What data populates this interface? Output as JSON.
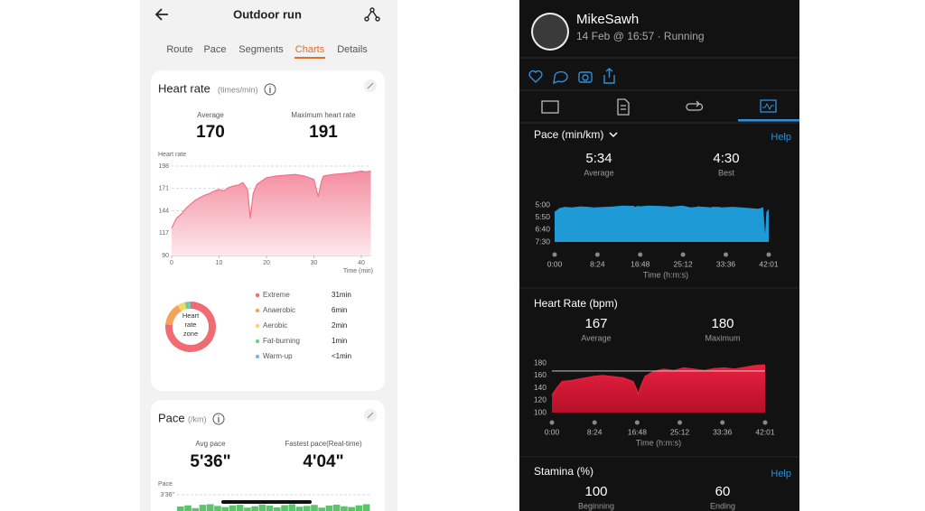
{
  "left_screen": {
    "header": {
      "title": "Outdoor run"
    },
    "tabs": [
      "Route",
      "Pace",
      "Segments",
      "Charts",
      "Details"
    ],
    "active_tab": 3,
    "heart_rate_card": {
      "title": "Heart rate",
      "unit": "(times/min)",
      "stats": [
        {
          "label": "Average",
          "value": 170
        },
        {
          "label": "Maximum heart rate",
          "value": 191
        }
      ],
      "chart_data": {
        "type": "area",
        "y_label": "Heart rate",
        "x_label": "Time (min)",
        "x": [
          0,
          1,
          2,
          3,
          4,
          5,
          6,
          7,
          8,
          9,
          10,
          11,
          12,
          13,
          14,
          15,
          16,
          16.6,
          17.2,
          18,
          19,
          20,
          22,
          24,
          26,
          28,
          30,
          30.9,
          31.6,
          32,
          34,
          36,
          38,
          40,
          41,
          42
        ],
        "values": [
          123,
          135,
          140,
          147,
          152,
          157,
          160,
          163,
          165,
          168,
          170,
          168,
          172,
          174,
          175,
          178,
          170,
          135,
          165,
          176,
          180,
          184,
          186,
          187,
          188,
          186,
          182,
          161,
          180,
          186,
          188,
          189,
          190,
          192,
          191,
          192
        ],
        "color": "#f0738a",
        "xlim": [
          0,
          42
        ],
        "ylim": [
          90,
          198
        ],
        "xticks": [
          0,
          10,
          20,
          30,
          40
        ],
        "yticks": [
          90,
          117,
          144,
          171,
          198
        ],
        "grid": true
      },
      "zones": {
        "type": "donut",
        "center_label": "Heart rate zone",
        "categories": [
          "Extreme",
          "Anaerobic",
          "Aerobic",
          "Fat-burning",
          "Warm-up"
        ],
        "values": [
          31,
          6,
          2,
          1,
          0.5
        ],
        "value_labels": [
          "31min",
          "6min",
          "2min",
          "1min",
          "<1min"
        ],
        "colors": [
          "#f06b72",
          "#f5a25d",
          "#f7d56a",
          "#6fcf8f",
          "#7ab8e8"
        ]
      }
    },
    "pace_card": {
      "title": "Pace",
      "unit": "(/km)",
      "stats": [
        {
          "label": "Avg pace",
          "value": "5'36\""
        },
        {
          "label": "Fastest pace(Real-time)",
          "value": "4'04\""
        }
      ],
      "chart_data": {
        "type": "bar",
        "y_label": "Pace",
        "values": [
          320,
          310,
          335,
          305,
          300,
          315,
          325,
          310,
          305,
          330,
          318,
          302,
          312,
          328,
          308,
          300,
          322,
          315,
          306,
          330,
          312,
          304,
          318,
          325,
          310,
          300
        ],
        "color": "#5cc46b",
        "ylim": [
          216,
          360
        ],
        "y_inverted": true,
        "yticks": [
          {
            "value": 216,
            "label": "3'36\""
          }
        ],
        "grid": true
      }
    }
  },
  "right_screen": {
    "profile": {
      "name": "MikeSawh",
      "subtitle": "14 Feb @ 16:57 · Running"
    },
    "pace_section": {
      "title": "Pace (min/km)",
      "help": "Help",
      "stats": [
        {
          "value": "5:34",
          "label": "Average"
        },
        {
          "value": "4:30",
          "label": "Best"
        }
      ],
      "chart_data": {
        "type": "area",
        "x_label": "Time (h:m:s)",
        "x": [
          0,
          60,
          120,
          200,
          300,
          400,
          450,
          457,
          464,
          600,
          700,
          800,
          930,
          936,
          942,
          985,
          990,
          995,
          1100,
          1200,
          1345,
          1351,
          1357,
          1500,
          1600,
          1675,
          1681,
          1687,
          1740,
          1745,
          1750,
          1845,
          1851,
          1857,
          1941,
          1947,
          1953,
          2100,
          2200,
          2300,
          2400,
          2450,
          2480,
          2500,
          2521
        ],
        "values": [
          330,
          315,
          310,
          312,
          308,
          310,
          312,
          450,
          312,
          310,
          308,
          305,
          306,
          450,
          310,
          306,
          450,
          308,
          305,
          306,
          308,
          450,
          310,
          305,
          312,
          310,
          450,
          308,
          310,
          450,
          310,
          312,
          450,
          310,
          310,
          450,
          312,
          310,
          312,
          315,
          318,
          312,
          450,
          330,
          320
        ],
        "color": "#1e9bd7",
        "xlim": [
          0,
          2521
        ],
        "ylim": [
          300,
          450
        ],
        "y_inverted": true,
        "xticks": [
          {
            "value": 0,
            "label": "0:00"
          },
          {
            "value": 504,
            "label": "8:24"
          },
          {
            "value": 1008,
            "label": "16:48"
          },
          {
            "value": 1512,
            "label": "25:12"
          },
          {
            "value": 2016,
            "label": "33:36"
          },
          {
            "value": 2521,
            "label": "42:01"
          }
        ],
        "yticks": [
          {
            "value": 300,
            "label": "5:00"
          },
          {
            "value": 350,
            "label": "5:50"
          },
          {
            "value": 400,
            "label": "6:40"
          },
          {
            "value": 450,
            "label": "7:30"
          }
        ]
      }
    },
    "heart_rate_section": {
      "title": "Heart Rate (bpm)",
      "stats": [
        {
          "value": 167,
          "label": "Average"
        },
        {
          "value": 180,
          "label": "Maximum"
        }
      ],
      "chart_data": {
        "type": "area",
        "x_label": "Time (h:m:s)",
        "x": [
          0,
          60,
          120,
          240,
          360,
          480,
          600,
          720,
          840,
          960,
          1000,
          1020,
          1050,
          1100,
          1200,
          1320,
          1440,
          1560,
          1680,
          1800,
          1920,
          2040,
          2160,
          2280,
          2400,
          2521
        ],
        "values": [
          128,
          140,
          150,
          152,
          155,
          158,
          160,
          158,
          156,
          150,
          138,
          130,
          142,
          158,
          166,
          170,
          168,
          172,
          170,
          168,
          171,
          172,
          170,
          173,
          176,
          177
        ],
        "color": "#e8203f",
        "xlim": [
          0,
          2521
        ],
        "ylim": [
          100,
          180
        ],
        "xticks": [
          {
            "value": 0,
            "label": "0:00"
          },
          {
            "value": 504,
            "label": "8:24"
          },
          {
            "value": 1008,
            "label": "16:48"
          },
          {
            "value": 1512,
            "label": "25:12"
          },
          {
            "value": 2016,
            "label": "33:36"
          },
          {
            "value": 2521,
            "label": "42:01"
          }
        ],
        "yticks": [
          100,
          120,
          140,
          160,
          180
        ]
      }
    },
    "stamina_section": {
      "title": "Stamina (%)",
      "help": "Help",
      "stats": [
        {
          "value": 100,
          "label": "Beginning"
        },
        {
          "value": 60,
          "label": "Ending"
        }
      ]
    }
  }
}
